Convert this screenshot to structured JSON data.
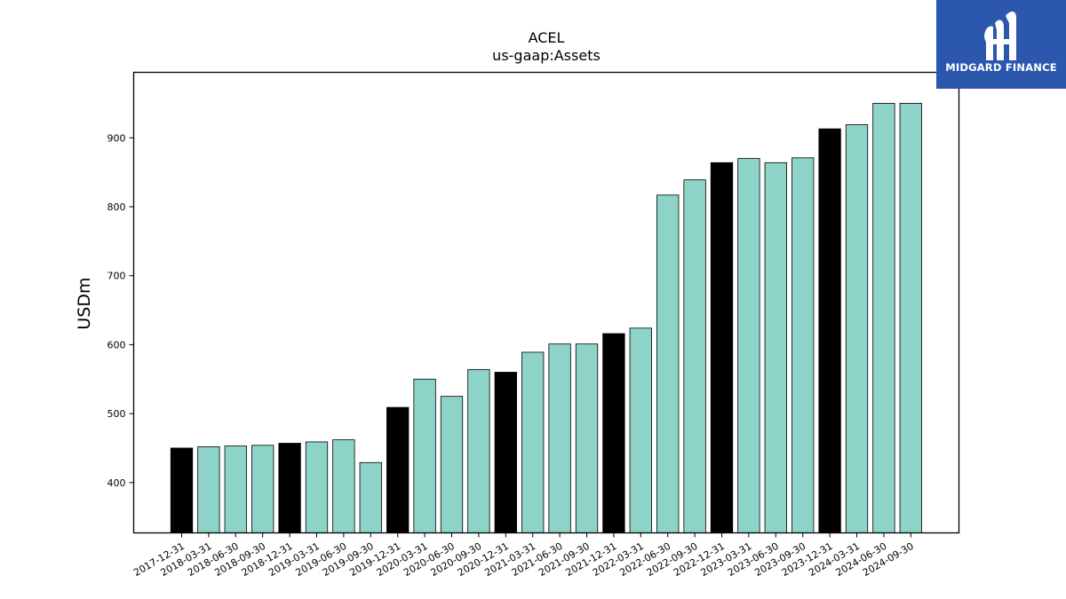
{
  "logo": {
    "text": "MIDGARD FINANCE",
    "background": "#2b58ad"
  },
  "chart_data": {
    "type": "bar",
    "title": "ACEL",
    "subtitle": "us-gaap:Assets",
    "ylabel": "USDm",
    "xlabel": "",
    "ylim": [
      327,
      995
    ],
    "yticks": [
      400,
      500,
      600,
      700,
      800,
      900
    ],
    "grid": false,
    "colors": {
      "annual": "#000000",
      "quarterly": "#8dd3c7",
      "edge": "#000000"
    },
    "categories": [
      "2017-12-31",
      "2018-03-31",
      "2018-06-30",
      "2018-09-30",
      "2018-12-31",
      "2019-03-31",
      "2019-06-30",
      "2019-09-30",
      "2019-12-31",
      "2020-03-31",
      "2020-06-30",
      "2020-09-30",
      "2020-12-31",
      "2021-03-31",
      "2021-06-30",
      "2021-09-30",
      "2021-12-31",
      "2022-03-31",
      "2022-06-30",
      "2022-09-30",
      "2022-12-31",
      "2023-03-31",
      "2023-06-30",
      "2023-09-30",
      "2023-12-31",
      "2024-03-31",
      "2024-06-30",
      "2024-09-30"
    ],
    "values": [
      450,
      452,
      453,
      454,
      457,
      459,
      462,
      429,
      509,
      550,
      525,
      564,
      560,
      589,
      601,
      601,
      616,
      624,
      817,
      839,
      864,
      870,
      864,
      871,
      913,
      919,
      950,
      950
    ],
    "highlight": [
      true,
      false,
      false,
      false,
      true,
      false,
      false,
      false,
      true,
      false,
      false,
      false,
      true,
      false,
      false,
      false,
      true,
      false,
      false,
      false,
      true,
      false,
      false,
      false,
      true,
      false,
      false,
      false
    ]
  }
}
